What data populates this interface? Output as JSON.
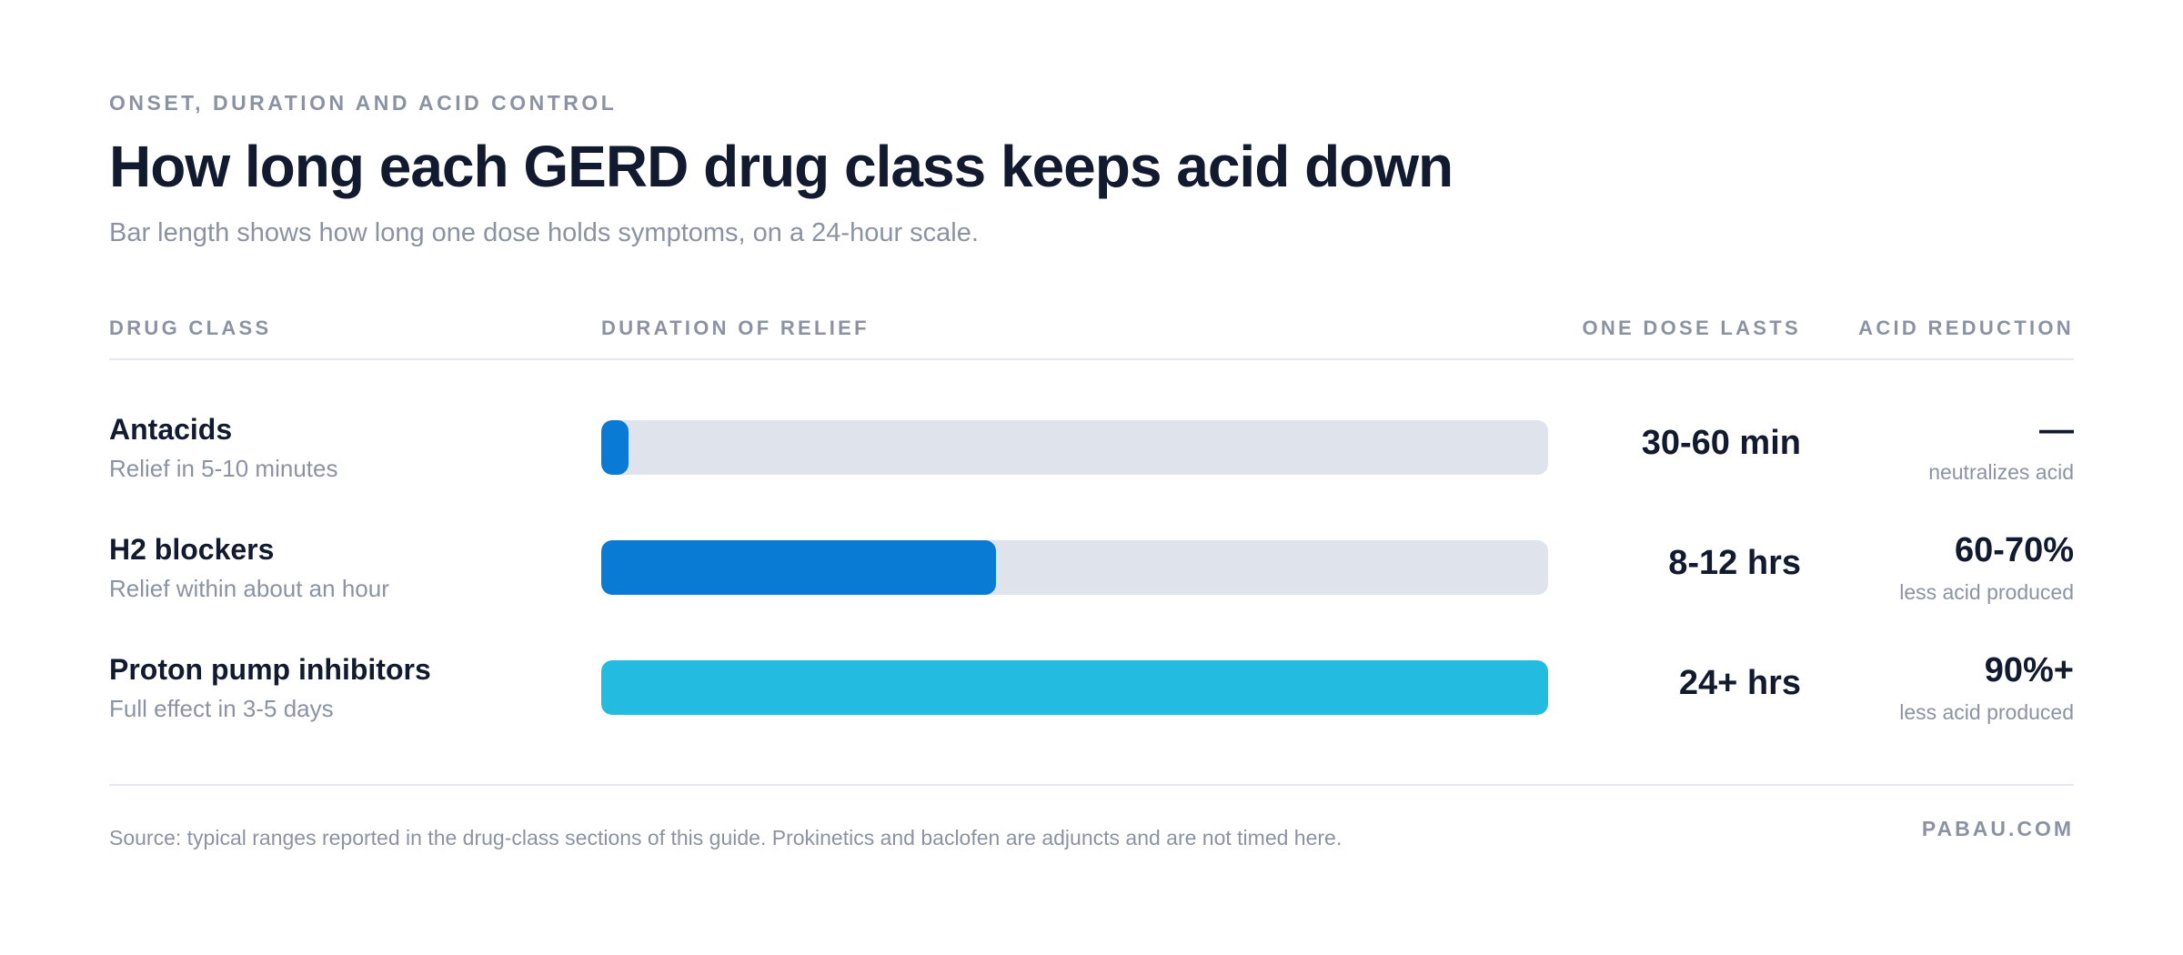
{
  "header": {
    "eyebrow": "ONSET, DURATION AND ACID CONTROL",
    "title": "How long each GERD drug class keeps acid down",
    "subtitle": "Bar length shows how long one dose holds symptoms, on a 24-hour scale."
  },
  "columns": {
    "drug_class": "DRUG CLASS",
    "duration": "DURATION OF RELIEF",
    "dose": "ONE DOSE LASTS",
    "acid": "ACID REDUCTION"
  },
  "chart_data": {
    "type": "bar",
    "orientation": "horizontal",
    "scale_hours": [
      0,
      24
    ],
    "categories": [
      "Antacids",
      "H2 blockers",
      "Proton pump inhibitors"
    ],
    "values": [
      0.7,
      10,
      24
    ],
    "rows": [
      {
        "name": "Antacids",
        "note": "Relief in 5-10 minutes",
        "hours": 0.7,
        "dose_label": "30-60 min",
        "acid_value": "—",
        "acid_note": "neutralizes acid",
        "color": "#0a7bd4"
      },
      {
        "name": "H2 blockers",
        "note": "Relief within about an hour",
        "hours": 10,
        "dose_label": "8-12 hrs",
        "acid_value": "60-70%",
        "acid_note": "less acid produced",
        "color": "#0a7bd4"
      },
      {
        "name": "Proton pump inhibitors",
        "note": "Full effect in 3-5 days",
        "hours": 24,
        "dose_label": "24+ hrs",
        "acid_value": "90%+",
        "acid_note": "less acid produced",
        "color": "#23bce0"
      }
    ],
    "track_color": "#dfe3ec"
  },
  "footer": {
    "source": "Source: typical ranges reported in the drug-class sections of this guide. Prokinetics and baclofen are adjuncts and are not timed here.",
    "brand": "PABAU.COM"
  }
}
